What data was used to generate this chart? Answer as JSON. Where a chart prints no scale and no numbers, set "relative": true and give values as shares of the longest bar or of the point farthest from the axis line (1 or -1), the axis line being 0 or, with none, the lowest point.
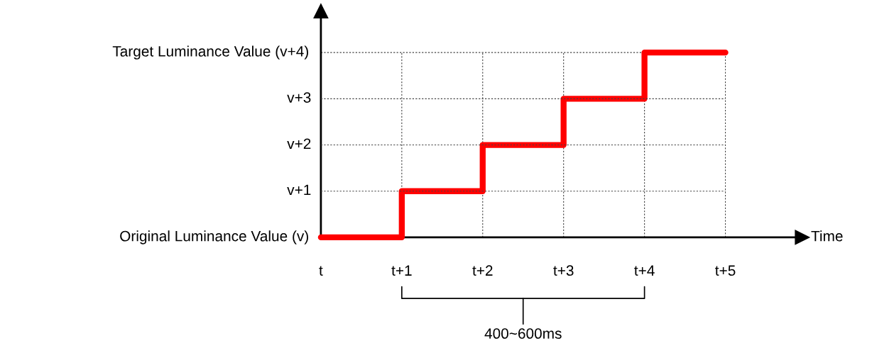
{
  "chart_data": {
    "type": "step",
    "relative": true,
    "categories": [
      "t",
      "t+1",
      "t+2",
      "t+3",
      "t+4",
      "t+5"
    ],
    "series": [
      {
        "color": "#ff0000",
        "values": [
          0,
          0.25,
          0.5,
          0.75,
          1,
          1
        ]
      }
    ],
    "ref_lines": [
      {
        "axis": "y",
        "value": 0.25,
        "label": "v+1",
        "line_style": "dotted"
      },
      {
        "axis": "y",
        "value": 0.5,
        "label": "v+2",
        "line_style": "dotted"
      },
      {
        "axis": "y",
        "value": 0.75,
        "label": "v+3",
        "line_style": "dotted"
      }
    ],
    "grid": "x",
    "line_style": "solid",
    "annotations": [
      {
        "text": "Original Luminance Value (v)",
        "x": "t",
        "y": 0
      },
      "Target Luminance Value (v+4)",
      "Time",
      "400~600ms"
    ]
  }
}
